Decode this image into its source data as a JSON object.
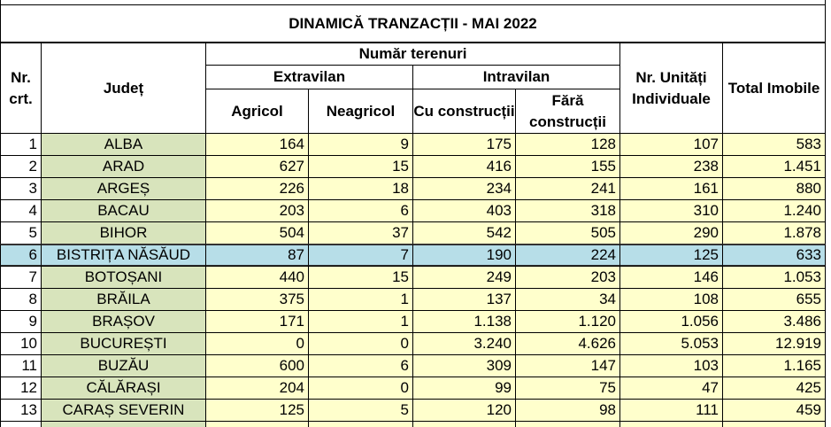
{
  "title": "DINAMICĂ TRANZACȚII - MAI 2022",
  "header": {
    "nr": "Nr. crt.",
    "judet": "Județ",
    "numar": "Număr terenuri",
    "extravilan": "Extravilan",
    "intravilan": "Intravilan",
    "agricol": "Agricol",
    "neagricol": "Neagricol",
    "cu": "Cu construcții",
    "fara": "Fără construcții",
    "unitati": "Nr. Unități Individuale",
    "total": "Total Imobile"
  },
  "rows": [
    [
      "1",
      "ALBA",
      "164",
      "9",
      "175",
      "128",
      "107",
      "583"
    ],
    [
      "2",
      "ARAD",
      "627",
      "15",
      "416",
      "155",
      "238",
      "1.451"
    ],
    [
      "3",
      "ARGEȘ",
      "226",
      "18",
      "234",
      "241",
      "161",
      "880"
    ],
    [
      "4",
      "BACAU",
      "203",
      "6",
      "403",
      "318",
      "310",
      "1.240"
    ],
    [
      "5",
      "BIHOR",
      "504",
      "37",
      "542",
      "505",
      "290",
      "1.878"
    ],
    [
      "6",
      "BISTRIȚA NĂSĂUD",
      "87",
      "7",
      "190",
      "224",
      "125",
      "633"
    ],
    [
      "7",
      "BOTOȘANI",
      "440",
      "15",
      "249",
      "203",
      "146",
      "1.053"
    ],
    [
      "8",
      "BRĂILA",
      "375",
      "1",
      "137",
      "34",
      "108",
      "655"
    ],
    [
      "9",
      "BRAȘOV",
      "171",
      "1",
      "1.138",
      "1.120",
      "1.056",
      "3.486"
    ],
    [
      "10",
      "BUCUREȘTI",
      "0",
      "0",
      "3.240",
      "4.626",
      "5.053",
      "12.919"
    ],
    [
      "11",
      "BUZĂU",
      "600",
      "6",
      "309",
      "147",
      "103",
      "1.165"
    ],
    [
      "12",
      "CĂLĂRAȘI",
      "204",
      "0",
      "99",
      "75",
      "47",
      "425"
    ],
    [
      "13",
      "CARAȘ SEVERIN",
      "125",
      "5",
      "120",
      "98",
      "111",
      "459"
    ]
  ]
}
